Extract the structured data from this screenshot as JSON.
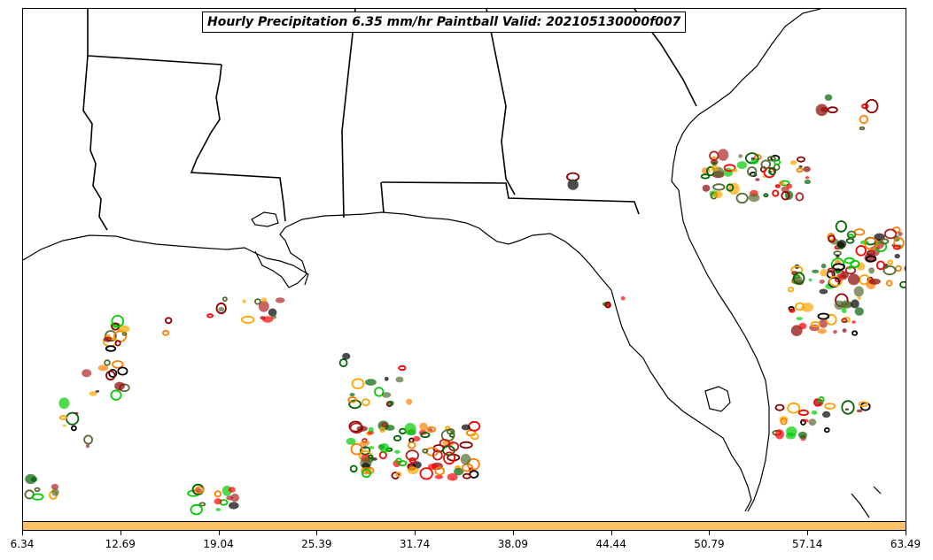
{
  "title": "Hourly Precipitation 6.35 mm/hr Paintball Valid: 202105130000f007",
  "colorbar": {
    "color": "#ffc266",
    "tick_labels": [
      "6.34",
      "12.69",
      "19.04",
      "25.39",
      "31.74",
      "38.09",
      "44.44",
      "50.79",
      "57.14",
      "63.49"
    ]
  },
  "palette": [
    "#ff7f00",
    "#ff0000",
    "#00cc00",
    "#8b0000",
    "#556b2f",
    "#006400",
    "#000000",
    "#b22222",
    "#ffa500"
  ],
  "map": {
    "features": [
      "state-borders",
      "coastline",
      "precipitation-paintballs"
    ]
  }
}
